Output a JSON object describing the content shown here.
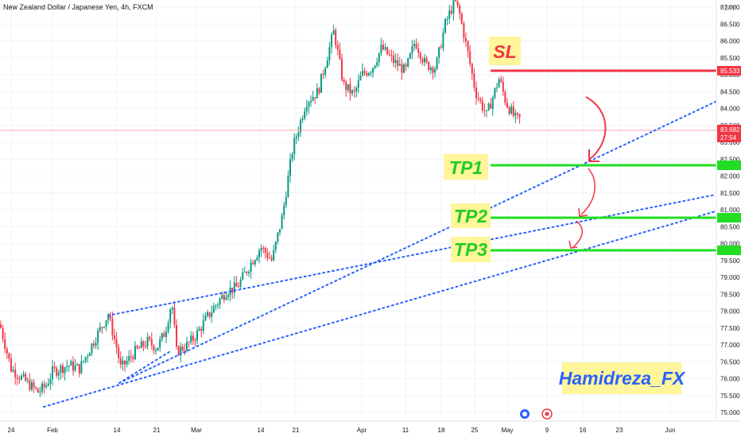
{
  "header": {
    "symbol_title": "New Zealand Dollar / Japanese Yen, 4h, FXCM",
    "currency": "JPY"
  },
  "price_axis": {
    "ticks": [
      "87.000",
      "86.500",
      "86.000",
      "85.500",
      "85.000",
      "84.500",
      "84.000",
      "83.500",
      "83.000",
      "82.500",
      "82.000",
      "81.500",
      "81.000",
      "80.500",
      "80.000",
      "79.500",
      "79.000",
      "78.500",
      "78.000",
      "77.500",
      "77.000",
      "76.500",
      "76.000",
      "75.500",
      "75.000"
    ]
  },
  "time_axis": {
    "labels": [
      "24",
      "Feb",
      "14",
      "21",
      "Mar",
      "14",
      "21",
      "Apr",
      "11",
      "18",
      "25",
      "May",
      "9",
      "16",
      "23",
      "Jun"
    ]
  },
  "annotations": {
    "sl_label": "SL",
    "tp1_label": "TP1",
    "tp2_label": "TP2",
    "tp3_label": "TP3",
    "watermark": "Hamidreza_FX"
  },
  "price_tags": {
    "sl_price": "85.533",
    "last_price": "83.682",
    "countdown": "27:54"
  },
  "colors": {
    "bull": "#089981",
    "bear": "#f23645",
    "stop_loss": "#f23645",
    "take_profit": "#22dd22",
    "trendline": "#2962ff",
    "watermark": "#2962ff"
  },
  "chart_data": {
    "type": "candlestick",
    "title": "New Zealand Dollar / Japanese Yen, 4h, FXCM",
    "timeframe": "4h",
    "ylim": [
      74.8,
      87.3
    ],
    "close_path": [
      {
        "x": "Jan 22",
        "y": 77.6
      },
      {
        "x": "Jan 24",
        "y": 76.3
      },
      {
        "x": "Jan 26",
        "y": 76.0
      },
      {
        "x": "Jan 29",
        "y": 75.6
      },
      {
        "x": "Jan 31",
        "y": 75.8
      },
      {
        "x": "Feb 2",
        "y": 76.2
      },
      {
        "x": "Feb 5",
        "y": 76.4
      },
      {
        "x": "Feb 7",
        "y": 76.3
      },
      {
        "x": "Feb 9",
        "y": 77.2
      },
      {
        "x": "Feb 12",
        "y": 77.9
      },
      {
        "x": "Feb 14",
        "y": 76.9
      },
      {
        "x": "Feb 15",
        "y": 76.3
      },
      {
        "x": "Feb 17",
        "y": 76.8
      },
      {
        "x": "Feb 19",
        "y": 77.1
      },
      {
        "x": "Feb 21",
        "y": 76.9
      },
      {
        "x": "Feb 23",
        "y": 77.4
      },
      {
        "x": "Feb 26",
        "y": 78.3
      },
      {
        "x": "Feb 27",
        "y": 76.8
      },
      {
        "x": "Feb 28",
        "y": 77.0
      },
      {
        "x": "Mar 1",
        "y": 77.3
      },
      {
        "x": "Mar 3",
        "y": 77.8
      },
      {
        "x": "Mar 5",
        "y": 78.2
      },
      {
        "x": "Mar 7",
        "y": 78.6
      },
      {
        "x": "Mar 9",
        "y": 78.7
      },
      {
        "x": "Mar 12",
        "y": 79.4
      },
      {
        "x": "Mar 14",
        "y": 79.9
      },
      {
        "x": "Mar 16",
        "y": 79.5
      },
      {
        "x": "Mar 18",
        "y": 80.8
      },
      {
        "x": "Mar 20",
        "y": 82.8
      },
      {
        "x": "Mar 22",
        "y": 84.2
      },
      {
        "x": "Mar 24",
        "y": 84.5
      },
      {
        "x": "Mar 27",
        "y": 86.3
      },
      {
        "x": "Mar 29",
        "y": 84.7
      },
      {
        "x": "Apr 1",
        "y": 84.4
      },
      {
        "x": "Apr 3",
        "y": 85.0
      },
      {
        "x": "Apr 5",
        "y": 85.2
      },
      {
        "x": "Apr 8",
        "y": 85.8
      },
      {
        "x": "Apr 10",
        "y": 85.4
      },
      {
        "x": "Apr 12",
        "y": 85.1
      },
      {
        "x": "Apr 15",
        "y": 86.0
      },
      {
        "x": "Apr 17",
        "y": 85.3
      },
      {
        "x": "Apr 19",
        "y": 85.2
      },
      {
        "x": "Apr 21",
        "y": 86.5
      },
      {
        "x": "Apr 23",
        "y": 87.2
      },
      {
        "x": "Apr 24",
        "y": 86.8
      },
      {
        "x": "Apr 26",
        "y": 85.7
      },
      {
        "x": "Apr 29",
        "y": 84.5
      },
      {
        "x": "Apr 30",
        "y": 83.8
      },
      {
        "x": "May 1",
        "y": 84.9
      },
      {
        "x": "May 2",
        "y": 84.2
      },
      {
        "x": "May 3",
        "y": 83.7
      },
      {
        "x": "May 4",
        "y": 83.682
      }
    ],
    "stop_loss": 85.533,
    "current_price": 83.682
  }
}
